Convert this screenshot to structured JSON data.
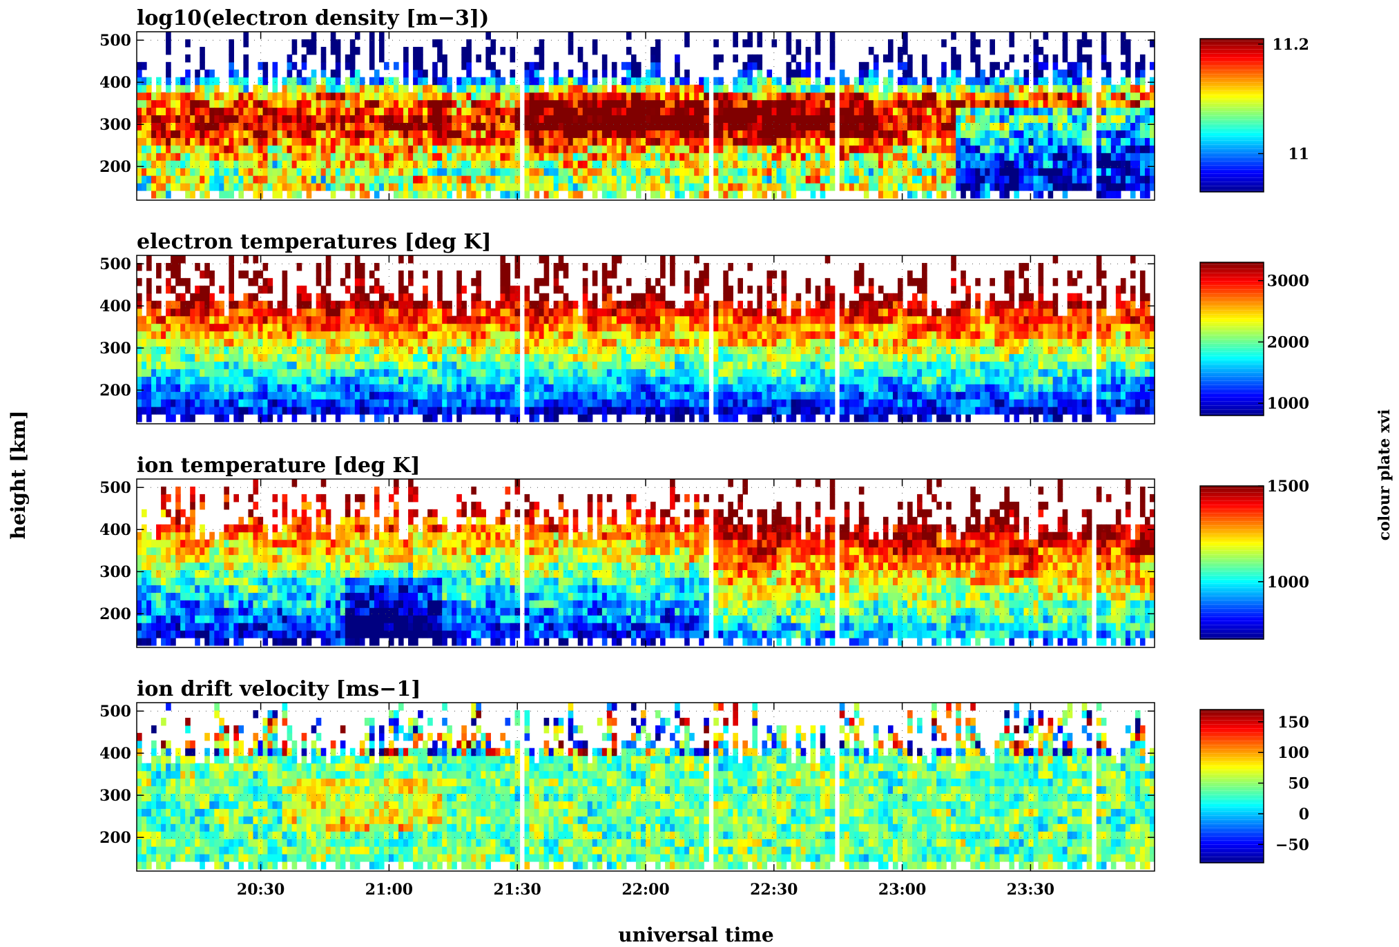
{
  "figure": {
    "ylabel": "height [km]",
    "xlabel": "universal time",
    "side_label": "colour plate xvi"
  },
  "chart_data": [
    {
      "type": "heatmap",
      "title": "log10(electron density [m−3])",
      "ylabel": "height [km]",
      "xlabel": "universal time",
      "x_ticks": [
        "20:30",
        "21:00",
        "21:30",
        "22:00",
        "22:30",
        "23:00",
        "23:30"
      ],
      "x_range": [
        "20:01",
        "23:59"
      ],
      "y_ticks": [
        200,
        300,
        400,
        500
      ],
      "y_range": [
        120,
        520
      ],
      "colorbar": {
        "range": [
          10.93,
          11.21
        ],
        "ticks": [
          "11.2",
          "11"
        ],
        "tick_values": [
          11.2,
          11.0
        ],
        "colormap": "jet"
      },
      "grid": true
    },
    {
      "type": "heatmap",
      "title": "electron temperatures [deg K]",
      "ylabel": "height [km]",
      "xlabel": "universal time",
      "x_ticks": [
        "20:30",
        "21:00",
        "21:30",
        "22:00",
        "22:30",
        "23:00",
        "23:30"
      ],
      "x_range": [
        "20:01",
        "23:59"
      ],
      "y_ticks": [
        200,
        300,
        400,
        500
      ],
      "y_range": [
        120,
        520
      ],
      "colorbar": {
        "range": [
          800,
          3300
        ],
        "ticks": [
          "3000",
          "2000",
          "1000"
        ],
        "tick_values": [
          3000,
          2000,
          1000
        ],
        "colormap": "jet"
      },
      "grid": true
    },
    {
      "type": "heatmap",
      "title": "ion temperature [deg K]",
      "ylabel": "height [km]",
      "xlabel": "universal time",
      "x_ticks": [
        "20:30",
        "21:00",
        "21:30",
        "22:00",
        "22:30",
        "23:00",
        "23:30"
      ],
      "x_range": [
        "20:01",
        "23:59"
      ],
      "y_ticks": [
        200,
        300,
        400,
        500
      ],
      "y_range": [
        120,
        520
      ],
      "colorbar": {
        "range": [
          700,
          1500
        ],
        "ticks": [
          "1500",
          "1000"
        ],
        "tick_values": [
          1500,
          1000
        ],
        "colormap": "jet"
      },
      "grid": true
    },
    {
      "type": "heatmap",
      "title": "ion drift velocity [ms−1]",
      "ylabel": "height [km]",
      "xlabel": "universal time",
      "x_ticks": [
        "20:30",
        "21:00",
        "21:30",
        "22:00",
        "22:30",
        "23:00",
        "23:30"
      ],
      "x_range": [
        "20:01",
        "23:59"
      ],
      "y_ticks": [
        200,
        300,
        400,
        500
      ],
      "y_range": [
        120,
        520
      ],
      "colorbar": {
        "range": [
          -80,
          170
        ],
        "ticks": [
          "150",
          "100",
          "50",
          "0",
          "−50"
        ],
        "tick_values": [
          150,
          100,
          50,
          0,
          -50
        ],
        "colormap": "jet"
      },
      "grid": true
    }
  ]
}
